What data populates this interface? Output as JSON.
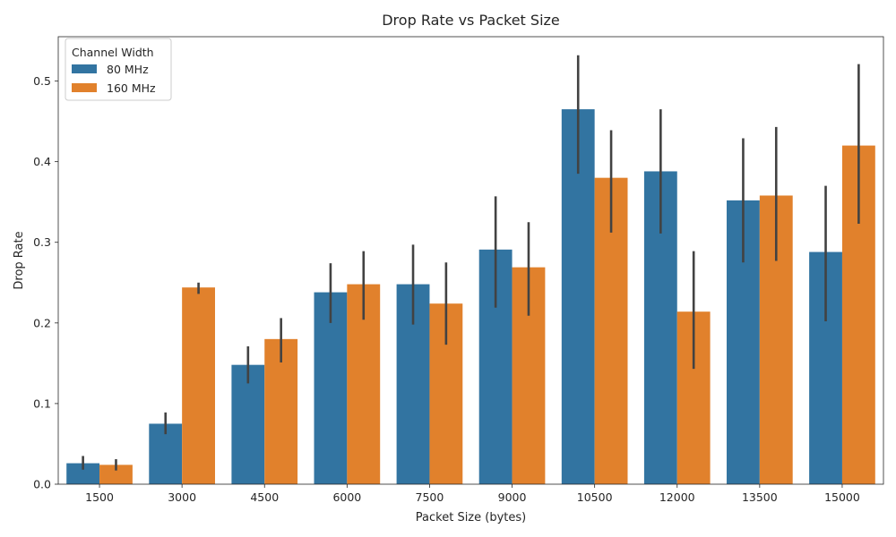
{
  "chart_data": {
    "type": "bar",
    "title": "Drop Rate vs Packet Size",
    "xlabel": "Packet Size (bytes)",
    "ylabel": "Drop Rate",
    "ylim": [
      0,
      0.555
    ],
    "yticks": [
      "0.0",
      "0.1",
      "0.2",
      "0.3",
      "0.4",
      "0.5"
    ],
    "categories": [
      "1500",
      "3000",
      "4500",
      "6000",
      "7500",
      "9000",
      "10500",
      "12000",
      "13500",
      "15000"
    ],
    "legend": {
      "title": "Channel Width",
      "placement": "top-left"
    },
    "grid": false,
    "series": [
      {
        "name": "80 MHz",
        "color": "#3274a1",
        "values": [
          0.026,
          0.075,
          0.148,
          0.238,
          0.248,
          0.291,
          0.465,
          0.388,
          0.352,
          0.288
        ],
        "error_low": [
          0.018,
          0.062,
          0.125,
          0.2,
          0.198,
          0.219,
          0.385,
          0.311,
          0.275,
          0.202
        ],
        "error_high": [
          0.035,
          0.089,
          0.171,
          0.274,
          0.297,
          0.357,
          0.532,
          0.465,
          0.429,
          0.37
        ]
      },
      {
        "name": "160 MHz",
        "color": "#e1812c",
        "values": [
          0.024,
          0.244,
          0.18,
          0.248,
          0.224,
          0.269,
          0.38,
          0.214,
          0.358,
          0.42
        ],
        "error_low": [
          0.017,
          0.236,
          0.151,
          0.204,
          0.173,
          0.209,
          0.312,
          0.143,
          0.277,
          0.323
        ],
        "error_high": [
          0.031,
          0.25,
          0.206,
          0.289,
          0.275,
          0.325,
          0.439,
          0.289,
          0.443,
          0.521
        ]
      }
    ]
  }
}
